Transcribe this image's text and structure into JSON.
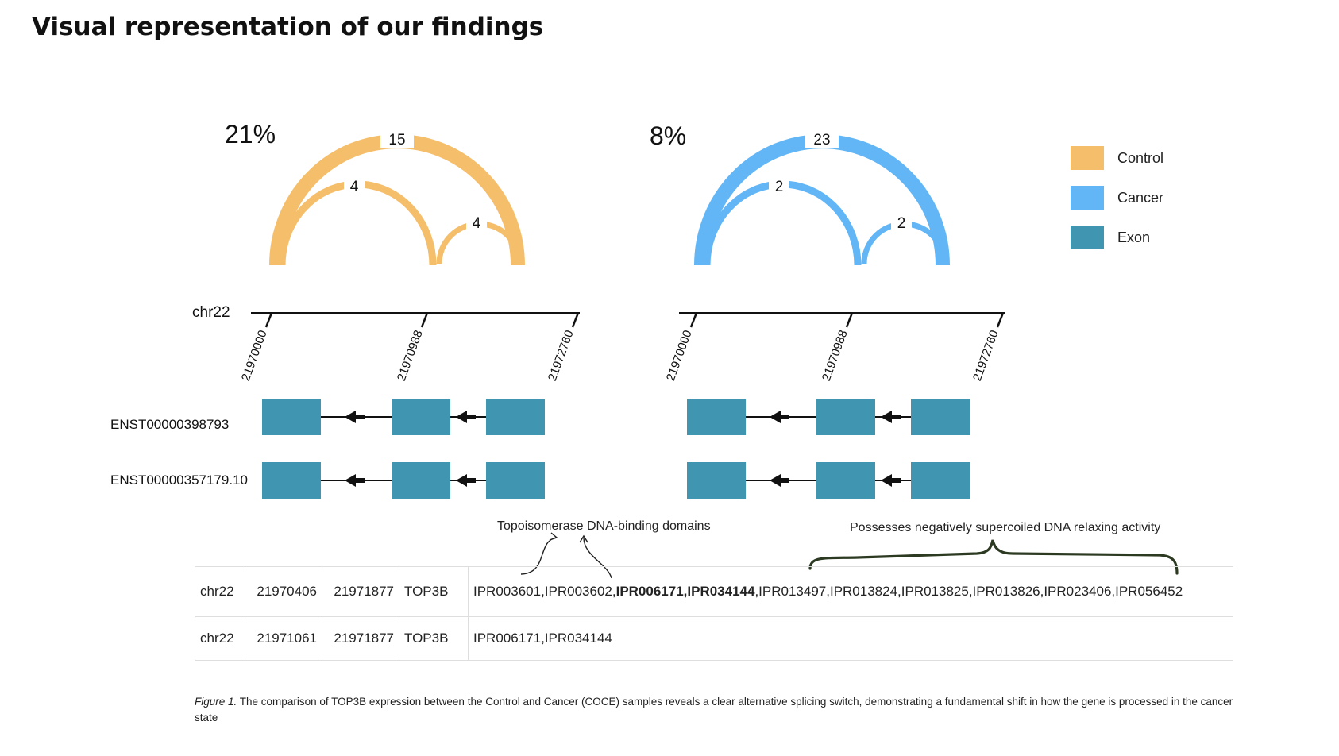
{
  "page": {
    "title": "Visual representation of our findings"
  },
  "colors": {
    "control": "#f5be6b",
    "cancer": "#62b6f6",
    "exon": "#4096b0"
  },
  "legend": [
    {
      "label": "Control",
      "color": "#f5be6b"
    },
    {
      "label": "Cancer",
      "color": "#62b6f6"
    },
    {
      "label": "Exon",
      "color": "#4096b0"
    }
  ],
  "panels": [
    {
      "condition": "Control",
      "percent": "21%",
      "junctions": {
        "outer": "15",
        "left": "4",
        "right": "4"
      }
    },
    {
      "condition": "Cancer",
      "percent": "8%",
      "junctions": {
        "outer": "23",
        "left": "2",
        "right": "2"
      }
    }
  ],
  "axis": {
    "chrom": "chr22",
    "ticks": [
      "21970000",
      "21970988",
      "21972760"
    ]
  },
  "transcripts": [
    "ENST00000398793",
    "ENST00000357179.10"
  ],
  "annotations": {
    "domains": "Topoisomerase DNA-binding domains",
    "activity": "Possesses negatively supercoiled DNA relaxing activity"
  },
  "table": {
    "rows": [
      {
        "chrom": "chr22",
        "start": "21970406",
        "end": "21971877",
        "gene": "TOP3B",
        "ipr_a": "IPR003601,IPR003602,",
        "ipr_bold": "IPR006171,IPR034144",
        "ipr_b": ",IPR013497,IPR013824,IPR013825,IPR013826,IPR023406,IPR056452"
      },
      {
        "chrom": "chr22",
        "start": "21971061",
        "end": "21971877",
        "gene": "TOP3B",
        "ipr_a": "IPR006171,IPR034144"
      }
    ]
  },
  "caption": {
    "label": "Figure 1.",
    "text": " The comparison of TOP3B expression between the Control and Cancer (COCE) samples reveals a clear alternative splicing switch, demonstrating a fundamental shift in how the gene is processed in the cancer state"
  }
}
